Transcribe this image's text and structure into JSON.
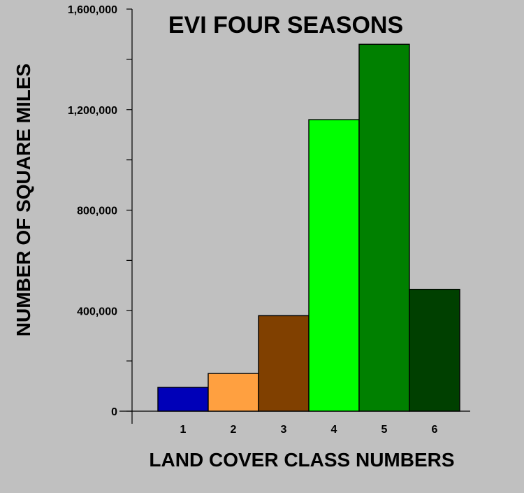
{
  "chart_data": {
    "type": "bar",
    "title": "EVI FOUR SEASONS",
    "xlabel": "LAND COVER CLASS NUMBERS",
    "ylabel": "NUMBER OF SQUARE MILES",
    "categories": [
      "1",
      "2",
      "3",
      "4",
      "5",
      "6"
    ],
    "values": [
      95000,
      150000,
      380000,
      1160000,
      1460000,
      485000
    ],
    "colors": [
      "#0000b8",
      "#ffa040",
      "#804000",
      "#00ff00",
      "#008000",
      "#004000"
    ],
    "ylim": [
      0,
      1600000
    ],
    "yticks": [
      {
        "value": 0,
        "label": "0"
      },
      {
        "value": 400000,
        "label": "400,000"
      },
      {
        "value": 800000,
        "label": "800,000"
      },
      {
        "value": 1200000,
        "label": "1,200,000"
      },
      {
        "value": 1600000,
        "label": "1,600,000"
      }
    ],
    "yminor_step": 200000,
    "grid": false,
    "background": "#c0c0c0"
  }
}
